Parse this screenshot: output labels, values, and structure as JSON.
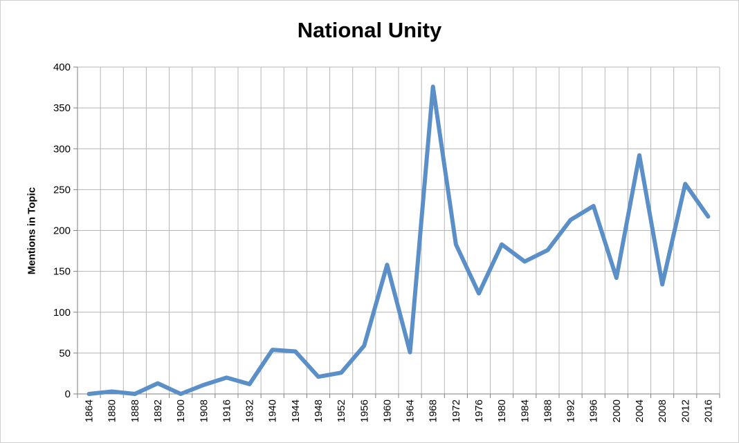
{
  "chart_data": {
    "type": "line",
    "title": "National Unity",
    "xlabel": "",
    "ylabel": "Mentions in Topic",
    "ylim": [
      0,
      400
    ],
    "yticks": [
      0,
      50,
      100,
      150,
      200,
      250,
      300,
      350,
      400
    ],
    "grid": true,
    "legend": "none",
    "categories": [
      "1864",
      "1880",
      "1888",
      "1892",
      "1900",
      "1908",
      "1916",
      "1932",
      "1940",
      "1944",
      "1948",
      "1952",
      "1956",
      "1960",
      "1964",
      "1968",
      "1972",
      "1976",
      "1980",
      "1984",
      "1988",
      "1992",
      "1996",
      "2000",
      "2004",
      "2008",
      "2012",
      "2016"
    ],
    "series": [
      {
        "values": [
          0,
          3,
          0,
          13,
          0,
          11,
          20,
          12,
          54,
          52,
          21,
          26,
          59,
          158,
          51,
          376,
          183,
          123,
          183,
          162,
          176,
          213,
          230,
          142,
          292,
          134,
          257,
          217
        ],
        "color": "#5b8fc8"
      }
    ],
    "colors": {
      "grid": "#b5b5b5",
      "axis": "#808080"
    }
  }
}
